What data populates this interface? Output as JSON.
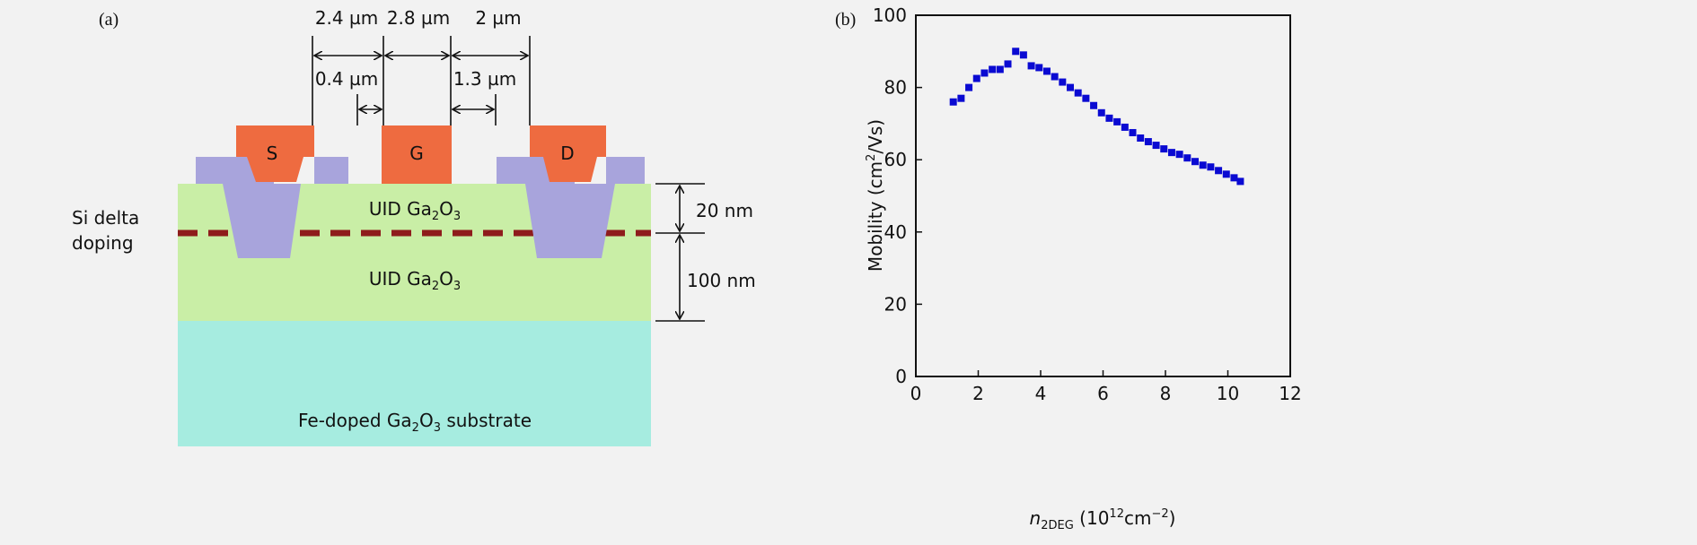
{
  "panel_a": {
    "label": "(a)",
    "dims_top": [
      "2.4 µm",
      "2.8 µm",
      "2 µm"
    ],
    "dims_inner": [
      "0.4 µm",
      "1.3 µm"
    ],
    "contacts": {
      "source": "S",
      "gate": "G",
      "drain": "D"
    },
    "uid_top": {
      "prefix": "UID Ga",
      "sub1": "2",
      "mid": "O",
      "sub2": "3"
    },
    "uid_bottom": {
      "prefix": "UID Ga",
      "sub1": "2",
      "mid": "O",
      "sub2": "3"
    },
    "substrate": {
      "prefix": "Fe-doped Ga",
      "sub1": "2",
      "mid": "O",
      "sub2": "3",
      "suffix": " substrate"
    },
    "delta_label": [
      "Si delta",
      "doping"
    ],
    "thickness": [
      "20 nm",
      "100 nm"
    ],
    "colors": {
      "metal": "#ee6b40",
      "ohmic_regrowth": "#a8a4dc",
      "uid": "#c9eea6",
      "substrate": "#a6ece0",
      "delta_doping": "#8e1c1c"
    }
  },
  "panel_b": {
    "label": "(b)"
  },
  "chart_data": {
    "type": "scatter",
    "xlabel": {
      "italic": "n",
      "sub": "2DEG",
      "rest": " (10",
      "sup": "12",
      "unit": "cm",
      "sup2": "−2",
      "close": ")"
    },
    "ylabel": {
      "text": "Mobility (cm",
      "sup": "2",
      "rest": "/Vs)"
    },
    "xlim": [
      0,
      12
    ],
    "ylim": [
      0,
      100
    ],
    "xticks": [
      "0",
      "2",
      "4",
      "6",
      "8",
      "10",
      "12"
    ],
    "yticks": [
      "0",
      "20",
      "40",
      "60",
      "80",
      "100"
    ],
    "grid": false,
    "marker": "square",
    "color": "#0a0ad2",
    "x": [
      1.2,
      1.45,
      1.7,
      1.95,
      2.2,
      2.45,
      2.7,
      2.95,
      3.2,
      3.45,
      3.7,
      3.95,
      4.2,
      4.45,
      4.7,
      4.95,
      5.2,
      5.45,
      5.7,
      5.95,
      6.2,
      6.45,
      6.7,
      6.95,
      7.2,
      7.45,
      7.7,
      7.95,
      8.2,
      8.45,
      8.7,
      8.95,
      9.2,
      9.45,
      9.7,
      9.95,
      10.2,
      10.4
    ],
    "y": [
      76,
      77,
      80,
      82.5,
      84,
      85,
      85,
      86.5,
      90,
      89,
      86,
      85.5,
      84.5,
      83,
      81.5,
      80,
      78.5,
      77,
      75,
      73,
      71.5,
      70.5,
      69,
      67.5,
      66,
      65,
      64,
      63,
      62,
      61.5,
      60.5,
      59.5,
      58.5,
      58,
      57,
      56,
      55,
      54
    ]
  }
}
